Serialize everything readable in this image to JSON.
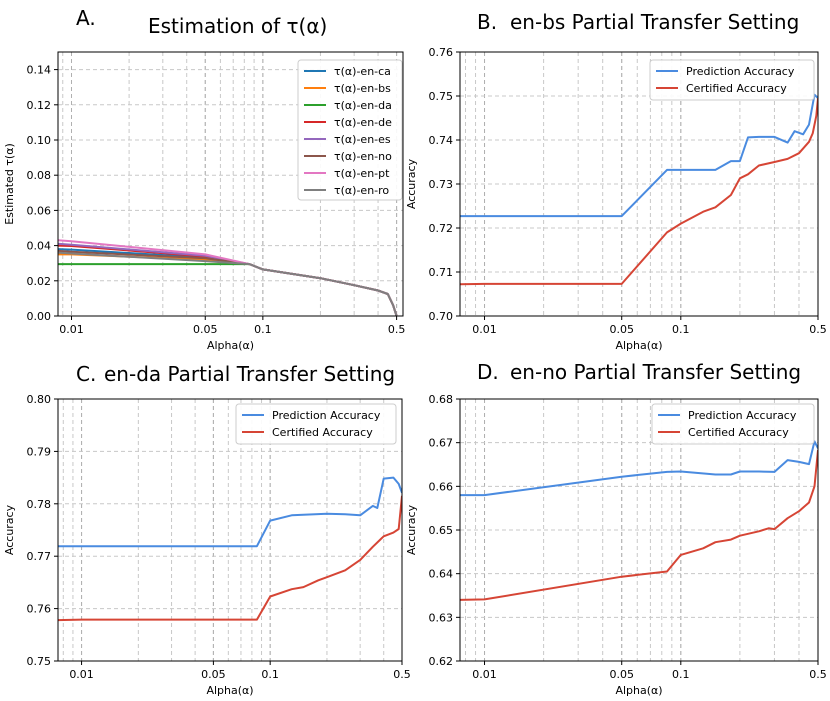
{
  "figure": {
    "panels": [
      {
        "label": "A.",
        "title": "Estimation of τ(α)"
      },
      {
        "label": "B.",
        "title": "en-bs Partial Transfer Setting"
      },
      {
        "label": "C.",
        "title": "en-da Partial Transfer Setting"
      },
      {
        "label": "D.",
        "title": "en-no Partial Transfer Setting"
      }
    ]
  },
  "chart_data": [
    {
      "id": "A",
      "type": "line",
      "title": "Estimation of τ(α)",
      "xlabel": "Alpha(α)",
      "ylabel": "Estimated τ(α)",
      "xscale": "log",
      "xlim": [
        0.0085,
        0.54
      ],
      "ylim": [
        0.0,
        0.15
      ],
      "xticks": [
        0.01,
        0.05,
        0.1,
        0.5
      ],
      "xtick_labels": [
        "0.01",
        "0.05",
        "0.1",
        "0.5"
      ],
      "yticks": [
        0.0,
        0.02,
        0.04,
        0.06,
        0.08,
        0.1,
        0.12,
        0.14
      ],
      "ytick_labels": [
        "0.00",
        "0.02",
        "0.04",
        "0.06",
        "0.08",
        "0.10",
        "0.12",
        "0.14"
      ],
      "grid": true,
      "legend": "upper right",
      "series": [
        {
          "name": "τ(α)-en-ca",
          "color": "#1f77b4",
          "x": [
            0.0085,
            0.01,
            0.05,
            0.085,
            0.1,
            0.2,
            0.3,
            0.4,
            0.45,
            0.48,
            0.5
          ],
          "y": [
            0.038,
            0.0377,
            0.0332,
            0.0295,
            0.0265,
            0.0215,
            0.0175,
            0.0145,
            0.0125,
            0.006,
            0.0
          ]
        },
        {
          "name": "τ(α)-en-bs",
          "color": "#ff7f0e",
          "x": [
            0.0085,
            0.01,
            0.05,
            0.085,
            0.1,
            0.2,
            0.3,
            0.4,
            0.45,
            0.48,
            0.5
          ],
          "y": [
            0.035,
            0.035,
            0.032,
            0.0295,
            0.0265,
            0.0215,
            0.0175,
            0.0145,
            0.0125,
            0.006,
            0.0
          ]
        },
        {
          "name": "τ(α)-en-da",
          "color": "#2ca02c",
          "x": [
            0.0085,
            0.01,
            0.05,
            0.085,
            0.1,
            0.2,
            0.3,
            0.4,
            0.45,
            0.48,
            0.5
          ],
          "y": [
            0.0295,
            0.0295,
            0.0295,
            0.0295,
            0.0265,
            0.0215,
            0.0175,
            0.0145,
            0.0125,
            0.006,
            0.0
          ]
        },
        {
          "name": "τ(α)-en-de",
          "color": "#d62728",
          "x": [
            0.0085,
            0.01,
            0.05,
            0.085,
            0.1,
            0.2,
            0.3,
            0.4,
            0.45,
            0.48,
            0.5
          ],
          "y": [
            0.04,
            0.0398,
            0.0338,
            0.0295,
            0.0265,
            0.0215,
            0.0175,
            0.0145,
            0.0125,
            0.006,
            0.0
          ]
        },
        {
          "name": "τ(α)-en-es",
          "color": "#9467bd",
          "x": [
            0.0085,
            0.01,
            0.05,
            0.085,
            0.1,
            0.2,
            0.3,
            0.4,
            0.45,
            0.48,
            0.5
          ],
          "y": [
            0.041,
            0.0405,
            0.0342,
            0.0295,
            0.0265,
            0.0215,
            0.0175,
            0.0145,
            0.0125,
            0.006,
            0.0
          ]
        },
        {
          "name": "τ(α)-en-no",
          "color": "#8c564b",
          "x": [
            0.0085,
            0.01,
            0.05,
            0.085,
            0.1,
            0.2,
            0.3,
            0.4,
            0.45,
            0.48,
            0.5
          ],
          "y": [
            0.037,
            0.0365,
            0.0328,
            0.0295,
            0.0265,
            0.0215,
            0.0175,
            0.0145,
            0.0125,
            0.006,
            0.0
          ]
        },
        {
          "name": "τ(α)-en-pt",
          "color": "#e377c2",
          "x": [
            0.0085,
            0.01,
            0.05,
            0.085,
            0.1,
            0.2,
            0.3,
            0.4,
            0.45,
            0.48,
            0.5
          ],
          "y": [
            0.043,
            0.0425,
            0.035,
            0.0295,
            0.0265,
            0.0215,
            0.0175,
            0.0145,
            0.0125,
            0.006,
            0.0
          ]
        },
        {
          "name": "τ(α)-en-ro",
          "color": "#7f7f7f",
          "x": [
            0.0085,
            0.01,
            0.05,
            0.085,
            0.1,
            0.2,
            0.3,
            0.4,
            0.45,
            0.48,
            0.5
          ],
          "y": [
            0.036,
            0.0355,
            0.0312,
            0.0295,
            0.0265,
            0.0215,
            0.0175,
            0.0145,
            0.0125,
            0.006,
            0.0
          ]
        }
      ]
    },
    {
      "id": "B",
      "type": "line",
      "title": "en-bs Partial Transfer Setting",
      "xlabel": "Alpha(α)",
      "ylabel": "Accuracy",
      "xscale": "log",
      "xlim": [
        0.0075,
        0.5
      ],
      "ylim": [
        0.7,
        0.76
      ],
      "xticks": [
        0.01,
        0.05,
        0.1,
        0.5
      ],
      "xtick_labels": [
        "0.01",
        "0.05",
        "0.1",
        "0.5"
      ],
      "yticks": [
        0.7,
        0.71,
        0.72,
        0.73,
        0.74,
        0.75,
        0.76
      ],
      "ytick_labels": [
        "0.70",
        "0.71",
        "0.72",
        "0.73",
        "0.74",
        "0.75",
        "0.76"
      ],
      "grid": true,
      "legend": "upper right",
      "series": [
        {
          "name": "Prediction Accuracy",
          "color": "#4a8be0",
          "x": [
            0.0075,
            0.01,
            0.05,
            0.085,
            0.1,
            0.15,
            0.18,
            0.2,
            0.22,
            0.25,
            0.3,
            0.35,
            0.38,
            0.42,
            0.45,
            0.48,
            0.5
          ],
          "y": [
            0.7227,
            0.7227,
            0.7227,
            0.7332,
            0.7332,
            0.7332,
            0.7352,
            0.7352,
            0.7406,
            0.7407,
            0.7407,
            0.7394,
            0.742,
            0.7413,
            0.7435,
            0.7503,
            0.7495
          ]
        },
        {
          "name": "Certified Accuracy",
          "color": "#d64535",
          "x": [
            0.0075,
            0.01,
            0.05,
            0.085,
            0.1,
            0.13,
            0.15,
            0.18,
            0.2,
            0.22,
            0.25,
            0.3,
            0.35,
            0.4,
            0.45,
            0.47,
            0.49,
            0.5
          ],
          "y": [
            0.7072,
            0.7073,
            0.7073,
            0.719,
            0.721,
            0.7237,
            0.7247,
            0.7275,
            0.7313,
            0.7322,
            0.7342,
            0.735,
            0.7357,
            0.737,
            0.7396,
            0.7415,
            0.7455,
            0.7495
          ]
        }
      ]
    },
    {
      "id": "C",
      "type": "line",
      "title": "en-da Partial Transfer Setting",
      "xlabel": "Alpha(α)",
      "ylabel": "Accuracy",
      "xscale": "log",
      "xlim": [
        0.0075,
        0.5
      ],
      "ylim": [
        0.75,
        0.8
      ],
      "xticks": [
        0.01,
        0.05,
        0.1,
        0.5
      ],
      "xtick_labels": [
        "0.01",
        "0.05",
        "0.1",
        "0.5"
      ],
      "yticks": [
        0.75,
        0.76,
        0.77,
        0.78,
        0.79,
        0.8
      ],
      "ytick_labels": [
        "0.75",
        "0.76",
        "0.77",
        "0.78",
        "0.79",
        "0.80"
      ],
      "grid": true,
      "legend": "upper right",
      "series": [
        {
          "name": "Prediction Accuracy",
          "color": "#4a8be0",
          "x": [
            0.0075,
            0.01,
            0.05,
            0.085,
            0.1,
            0.13,
            0.15,
            0.2,
            0.25,
            0.3,
            0.35,
            0.37,
            0.4,
            0.45,
            0.48,
            0.5
          ],
          "y": [
            0.7719,
            0.7719,
            0.7719,
            0.7719,
            0.7768,
            0.7778,
            0.7779,
            0.7781,
            0.778,
            0.7778,
            0.7796,
            0.7792,
            0.7848,
            0.785,
            0.7838,
            0.7821
          ]
        },
        {
          "name": "Certified Accuracy",
          "color": "#d64535",
          "x": [
            0.0075,
            0.01,
            0.05,
            0.085,
            0.1,
            0.13,
            0.15,
            0.18,
            0.2,
            0.25,
            0.3,
            0.35,
            0.4,
            0.45,
            0.48,
            0.5
          ],
          "y": [
            0.7578,
            0.7579,
            0.7579,
            0.7579,
            0.7623,
            0.7637,
            0.7641,
            0.7654,
            0.766,
            0.7673,
            0.7693,
            0.7718,
            0.7738,
            0.7745,
            0.7752,
            0.7815
          ]
        }
      ]
    },
    {
      "id": "D",
      "type": "line",
      "title": "en-no Partial Transfer Setting",
      "xlabel": "Alpha(α)",
      "ylabel": "Accuracy",
      "xscale": "log",
      "xlim": [
        0.0075,
        0.5
      ],
      "ylim": [
        0.62,
        0.68
      ],
      "xticks": [
        0.01,
        0.05,
        0.1,
        0.5
      ],
      "xtick_labels": [
        "0.01",
        "0.05",
        "0.1",
        "0.5"
      ],
      "yticks": [
        0.62,
        0.63,
        0.64,
        0.65,
        0.66,
        0.67,
        0.68
      ],
      "ytick_labels": [
        "0.62",
        "0.63",
        "0.64",
        "0.65",
        "0.66",
        "0.67",
        "0.68"
      ],
      "grid": true,
      "legend": "upper right",
      "series": [
        {
          "name": "Prediction Accuracy",
          "color": "#4a8be0",
          "x": [
            0.0075,
            0.01,
            0.05,
            0.085,
            0.1,
            0.15,
            0.18,
            0.2,
            0.25,
            0.3,
            0.35,
            0.4,
            0.45,
            0.48,
            0.5
          ],
          "y": [
            0.658,
            0.658,
            0.6622,
            0.6633,
            0.6634,
            0.6627,
            0.6627,
            0.6634,
            0.6634,
            0.6633,
            0.666,
            0.6656,
            0.6651,
            0.6703,
            0.6687
          ]
        },
        {
          "name": "Certified Accuracy",
          "color": "#d64535",
          "x": [
            0.0075,
            0.01,
            0.05,
            0.085,
            0.1,
            0.13,
            0.15,
            0.18,
            0.2,
            0.25,
            0.28,
            0.3,
            0.35,
            0.4,
            0.45,
            0.48,
            0.5
          ],
          "y": [
            0.634,
            0.6341,
            0.6393,
            0.6405,
            0.6443,
            0.6458,
            0.6472,
            0.6478,
            0.6487,
            0.6497,
            0.6504,
            0.6502,
            0.6527,
            0.6543,
            0.6563,
            0.66,
            0.6683
          ]
        }
      ]
    }
  ]
}
